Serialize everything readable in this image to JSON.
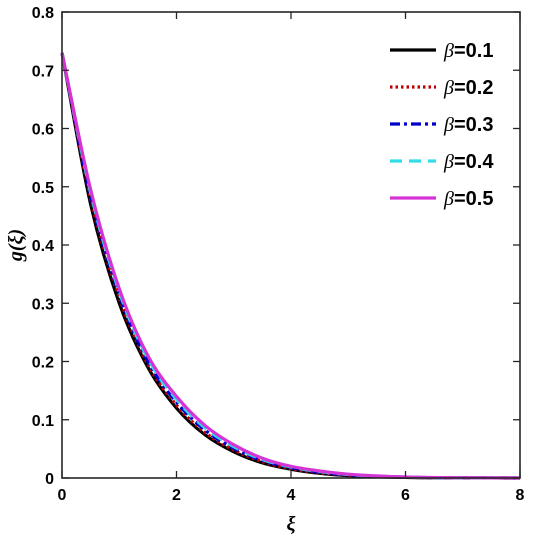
{
  "chart_data": {
    "type": "line",
    "xlabel": "ξ",
    "ylabel": "g(ξ)",
    "xlim": [
      0,
      8
    ],
    "ylim": [
      0,
      0.8
    ],
    "xticks": [
      "0",
      "2",
      "4",
      "6",
      "8"
    ],
    "yticks": [
      "0",
      "0.1",
      "0.2",
      "0.3",
      "0.4",
      "0.5",
      "0.6",
      "0.7",
      "0.8"
    ],
    "grid": false,
    "legend_position": "top-right",
    "x": [
      0,
      0.5,
      1,
      1.5,
      2,
      2.5,
      3,
      3.5,
      4,
      4.5,
      5,
      6,
      7,
      8
    ],
    "series": [
      {
        "name": "β=0.1",
        "label_prefix": "β",
        "label_suffix": "=0.1",
        "color": "#000000",
        "style": "solid",
        "values": [
          0.73,
          0.47,
          0.3,
          0.19,
          0.12,
          0.074,
          0.045,
          0.026,
          0.015,
          0.008,
          0.004,
          0.001,
          0.0002,
          0
        ]
      },
      {
        "name": "β=0.2",
        "label_prefix": "β",
        "label_suffix": "=0.2",
        "color": "#c00000",
        "style": "dotted",
        "values": [
          0.73,
          0.48,
          0.31,
          0.195,
          0.125,
          0.078,
          0.048,
          0.028,
          0.016,
          0.009,
          0.005,
          0.0012,
          0.0003,
          0
        ]
      },
      {
        "name": "β=0.3",
        "label_prefix": "β",
        "label_suffix": "=0.3",
        "color": "#0000cc",
        "style": "dashdot",
        "values": [
          0.73,
          0.485,
          0.315,
          0.2,
          0.13,
          0.082,
          0.051,
          0.03,
          0.018,
          0.01,
          0.0055,
          0.0014,
          0.0003,
          0
        ]
      },
      {
        "name": "β=0.4",
        "label_prefix": "β",
        "label_suffix": "=0.4",
        "color": "#33dde8",
        "style": "dashed",
        "values": [
          0.73,
          0.49,
          0.32,
          0.205,
          0.135,
          0.086,
          0.054,
          0.032,
          0.019,
          0.011,
          0.006,
          0.0016,
          0.0004,
          0
        ]
      },
      {
        "name": "β=0.5",
        "label_prefix": "β",
        "label_suffix": "=0.5",
        "color": "#d633d6",
        "style": "solid",
        "values": [
          0.73,
          0.495,
          0.325,
          0.21,
          0.14,
          0.09,
          0.057,
          0.034,
          0.02,
          0.012,
          0.0065,
          0.0018,
          0.0005,
          0
        ]
      }
    ]
  }
}
